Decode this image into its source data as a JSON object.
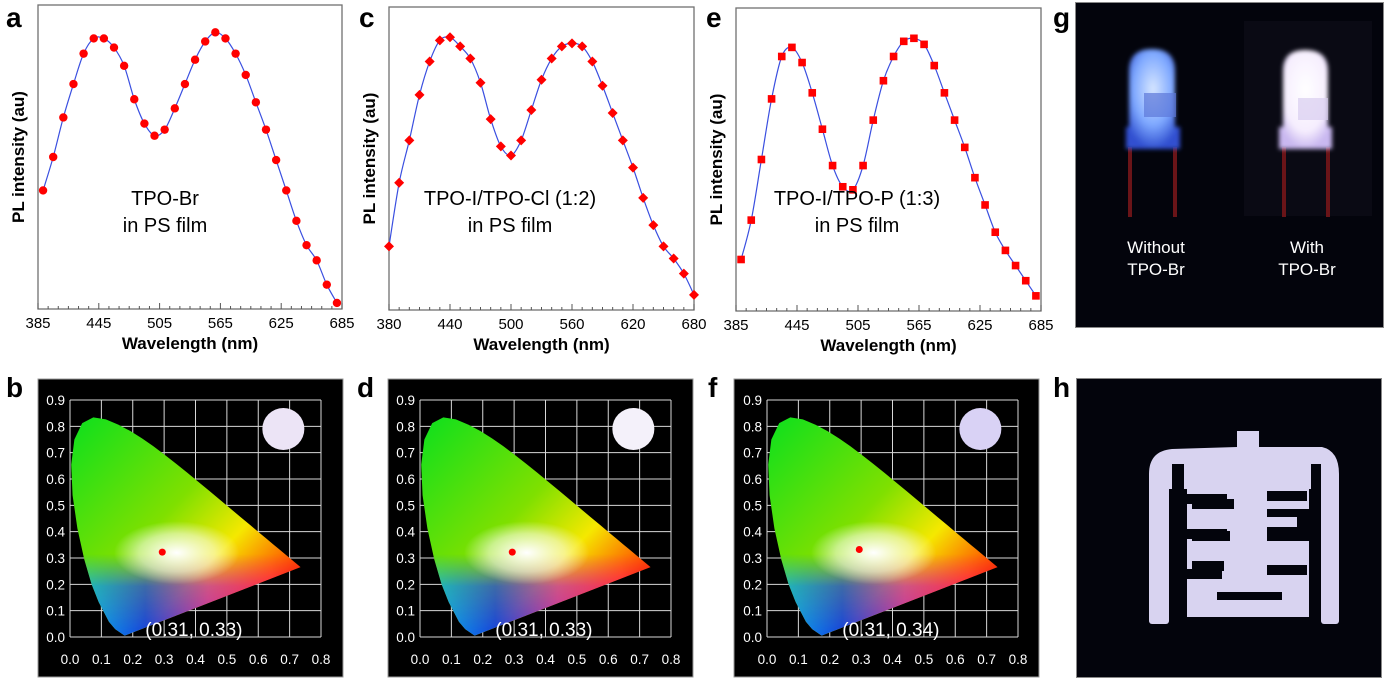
{
  "panels": {
    "a": "a",
    "b": "b",
    "c": "c",
    "d": "d",
    "e": "e",
    "f": "f",
    "g": "g",
    "h": "h"
  },
  "chart_data": [
    {
      "id": "a",
      "type": "line",
      "title": "",
      "annotation": [
        "TPO-Br",
        "in PS film"
      ],
      "xlabel": "Wavelength (nm)",
      "ylabel": "PL intensity (au)",
      "xlim": [
        385,
        685
      ],
      "ylim": [
        0,
        1
      ],
      "xticks": [
        385,
        445,
        505,
        565,
        625,
        685
      ],
      "marker": "circle",
      "marker_color": "#ff0000",
      "line_color": "#3a4fe0",
      "x": [
        390,
        400,
        410,
        420,
        430,
        440,
        450,
        460,
        470,
        480,
        490,
        500,
        510,
        520,
        530,
        540,
        550,
        560,
        570,
        580,
        590,
        600,
        610,
        620,
        630,
        640,
        650,
        660,
        670,
        680
      ],
      "values": [
        0.39,
        0.5,
        0.63,
        0.74,
        0.84,
        0.89,
        0.89,
        0.86,
        0.8,
        0.69,
        0.61,
        0.57,
        0.59,
        0.66,
        0.74,
        0.82,
        0.88,
        0.91,
        0.89,
        0.84,
        0.77,
        0.68,
        0.59,
        0.49,
        0.39,
        0.29,
        0.21,
        0.16,
        0.08,
        0.02
      ]
    },
    {
      "id": "c",
      "type": "line",
      "title": "",
      "annotation": [
        "TPO-I/TPO-Cl (1:2)",
        "in PS film"
      ],
      "xlabel": "Wavelength (nm)",
      "ylabel": "PL intensity (au)",
      "xlim": [
        380,
        680
      ],
      "ylim": [
        0,
        1
      ],
      "xticks": [
        380,
        440,
        500,
        560,
        620,
        680
      ],
      "marker": "diamond",
      "marker_color": "#ff0000",
      "line_color": "#3a4fe0",
      "x": [
        380,
        390,
        400,
        410,
        420,
        430,
        440,
        450,
        460,
        470,
        480,
        490,
        500,
        510,
        520,
        530,
        540,
        550,
        560,
        570,
        580,
        590,
        600,
        610,
        620,
        630,
        640,
        650,
        660,
        670,
        680
      ],
      "values": [
        0.21,
        0.42,
        0.56,
        0.71,
        0.82,
        0.89,
        0.9,
        0.87,
        0.83,
        0.75,
        0.63,
        0.54,
        0.51,
        0.56,
        0.66,
        0.76,
        0.83,
        0.87,
        0.88,
        0.87,
        0.82,
        0.74,
        0.65,
        0.56,
        0.47,
        0.37,
        0.28,
        0.21,
        0.17,
        0.12,
        0.05
      ]
    },
    {
      "id": "e",
      "type": "line",
      "title": "",
      "annotation": [
        "TPO-I/TPO-P (1:3)",
        "in PS film"
      ],
      "xlabel": "Wavelength (nm)",
      "ylabel": "PL intensity (au)",
      "xlim": [
        385,
        685
      ],
      "ylim": [
        0,
        1
      ],
      "xticks": [
        385,
        445,
        505,
        565,
        625,
        685
      ],
      "marker": "square",
      "marker_color": "#ff0000",
      "line_color": "#3a4fe0",
      "x": [
        390,
        400,
        410,
        420,
        430,
        440,
        450,
        460,
        470,
        480,
        490,
        500,
        510,
        520,
        530,
        540,
        550,
        560,
        570,
        580,
        590,
        600,
        610,
        620,
        630,
        640,
        650,
        660,
        670,
        680
      ],
      "values": [
        0.17,
        0.3,
        0.5,
        0.7,
        0.84,
        0.87,
        0.82,
        0.72,
        0.6,
        0.48,
        0.41,
        0.4,
        0.48,
        0.63,
        0.76,
        0.84,
        0.89,
        0.9,
        0.88,
        0.81,
        0.72,
        0.63,
        0.54,
        0.44,
        0.35,
        0.26,
        0.2,
        0.15,
        0.1,
        0.05
      ]
    },
    {
      "id": "b",
      "type": "scatter",
      "chart_kind": "CIE 1931 chromaticity diagram",
      "xlim": [
        0.0,
        0.8
      ],
      "ylim": [
        0.0,
        0.9
      ],
      "xticks": [
        0.0,
        0.1,
        0.2,
        0.3,
        0.4,
        0.5,
        0.6,
        0.7,
        0.8
      ],
      "yticks": [
        0.0,
        0.1,
        0.2,
        0.3,
        0.4,
        0.5,
        0.6,
        0.7,
        0.8,
        0.9
      ],
      "xtick_labels": [
        "0.0",
        "0.1",
        "0.2",
        "0.3",
        "0.4",
        "0.5",
        "0.6",
        "0.7",
        "0.8"
      ],
      "ytick_labels": [
        "0.0",
        "0.1",
        "0.2",
        "0.3",
        "0.4",
        "0.5",
        "0.6",
        "0.7",
        "0.8",
        "0.9"
      ],
      "grid": true,
      "point": {
        "x": 0.31,
        "y": 0.33,
        "color": "#ff0000"
      },
      "annotation": "(0.31, 0.33)",
      "sample_color": "#ece4f6"
    },
    {
      "id": "d",
      "type": "scatter",
      "chart_kind": "CIE 1931 chromaticity diagram",
      "xlim": [
        0.0,
        0.8
      ],
      "ylim": [
        0.0,
        0.9
      ],
      "xticks": [
        0.0,
        0.1,
        0.2,
        0.3,
        0.4,
        0.5,
        0.6,
        0.7,
        0.8
      ],
      "yticks": [
        0.0,
        0.1,
        0.2,
        0.3,
        0.4,
        0.5,
        0.6,
        0.7,
        0.8,
        0.9
      ],
      "xtick_labels": [
        "0.0",
        "0.1",
        "0.2",
        "0.3",
        "0.4",
        "0.5",
        "0.6",
        "0.7",
        "0.8"
      ],
      "ytick_labels": [
        "0.0",
        "0.1",
        "0.2",
        "0.3",
        "0.4",
        "0.5",
        "0.6",
        "0.7",
        "0.8",
        "0.9"
      ],
      "grid": true,
      "point": {
        "x": 0.31,
        "y": 0.33,
        "color": "#ff0000"
      },
      "annotation": "(0.31, 0.33)",
      "sample_color": "#f4f1fa"
    },
    {
      "id": "f",
      "type": "scatter",
      "chart_kind": "CIE 1931 chromaticity diagram",
      "xlim": [
        0.0,
        0.8
      ],
      "ylim": [
        0.0,
        0.9
      ],
      "xticks": [
        0.0,
        0.1,
        0.2,
        0.3,
        0.4,
        0.5,
        0.6,
        0.7,
        0.8
      ],
      "yticks": [
        0.0,
        0.1,
        0.2,
        0.3,
        0.4,
        0.5,
        0.6,
        0.7,
        0.8,
        0.9
      ],
      "xtick_labels": [
        "0.0",
        "0.1",
        "0.2",
        "0.3",
        "0.4",
        "0.5",
        "0.6",
        "0.7",
        "0.8"
      ],
      "ytick_labels": [
        "0.0",
        "0.1",
        "0.2",
        "0.3",
        "0.4",
        "0.5",
        "0.6",
        "0.7",
        "0.8",
        "0.9"
      ],
      "grid": true,
      "point": {
        "x": 0.31,
        "y": 0.34,
        "color": "#ff0000"
      },
      "annotation": "(0.31, 0.34)",
      "sample_color": "#d9d2f5"
    }
  ],
  "photos": {
    "g": {
      "left_caption": [
        "Without",
        "TPO-Br"
      ],
      "right_caption": [
        "With",
        "TPO-Br"
      ],
      "left_led_color": "#8fb6ff",
      "right_led_color": "#fbf6ff"
    },
    "h": {
      "glyph_color": "#d8d3f0",
      "background": "#03040c"
    }
  }
}
